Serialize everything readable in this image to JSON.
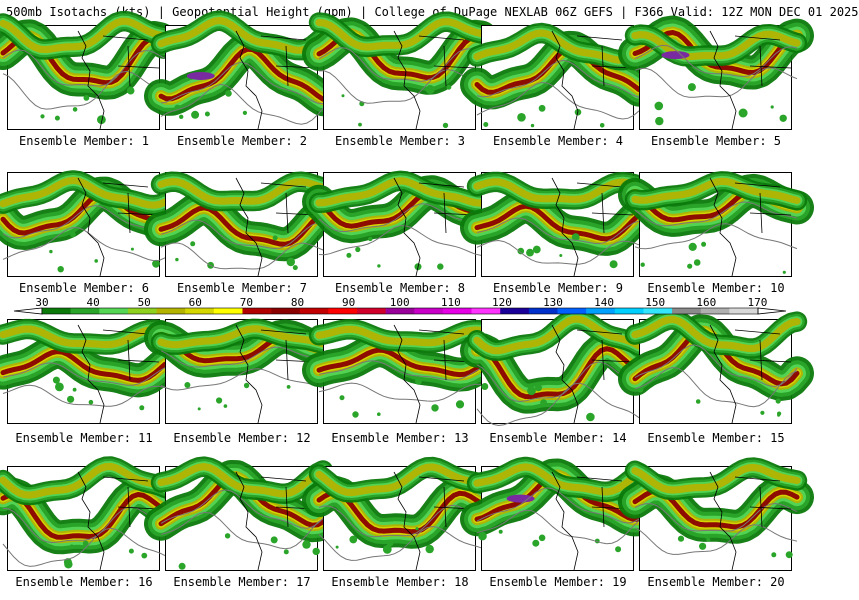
{
  "header": {
    "text": "500mb Isotachs (kts) | Geopotential Height (gpm) | College of DuPage NEXLAB   06Z GEFS | F366 Valid: 12Z MON DEC 01 2025"
  },
  "panels": [
    {
      "label": "Ensemble Member: 1"
    },
    {
      "label": "Ensemble Member: 2"
    },
    {
      "label": "Ensemble Member: 3"
    },
    {
      "label": "Ensemble Member: 4"
    },
    {
      "label": "Ensemble Member: 5"
    },
    {
      "label": "Ensemble Member: 6"
    },
    {
      "label": "Ensemble Member: 7"
    },
    {
      "label": "Ensemble Member: 8"
    },
    {
      "label": "Ensemble Member: 9"
    },
    {
      "label": "Ensemble Member: 10"
    },
    {
      "label": "Ensemble Member: 11"
    },
    {
      "label": "Ensemble Member: 12"
    },
    {
      "label": "Ensemble Member: 13"
    },
    {
      "label": "Ensemble Member: 14"
    },
    {
      "label": "Ensemble Member: 15"
    },
    {
      "label": "Ensemble Member: 16"
    },
    {
      "label": "Ensemble Member: 17"
    },
    {
      "label": "Ensemble Member: 18"
    },
    {
      "label": "Ensemble Member: 19"
    },
    {
      "label": "Ensemble Member: 20"
    }
  ],
  "colorbar": {
    "labels": [
      "30",
      "40",
      "50",
      "60",
      "70",
      "80",
      "90",
      "100",
      "110",
      "120",
      "130",
      "140",
      "150",
      "160",
      "170"
    ],
    "colors": [
      "#0b7a0b",
      "#2aa52a",
      "#55d655",
      "#8fd11f",
      "#b3b300",
      "#d6d600",
      "#ffff00",
      "#b00000",
      "#8a0000",
      "#c20000",
      "#ff0000",
      "#d0002a",
      "#9a009a",
      "#c800c8",
      "#e600e6",
      "#ff33ff",
      "#1a0099",
      "#0030cc",
      "#0060ff",
      "#00a0ff",
      "#00cfff",
      "#33e6ff",
      "#8a8a8a",
      "#b0b0b0",
      "#d8d8d8"
    ],
    "colors_note_first": "#0b7a0b"
  }
}
